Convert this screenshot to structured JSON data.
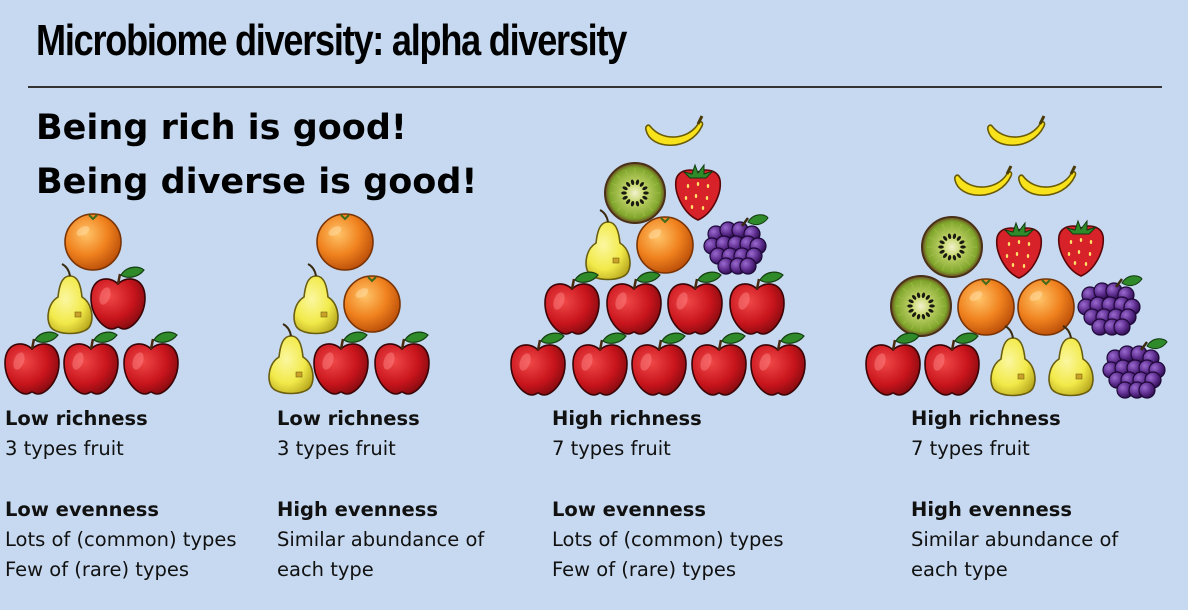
{
  "title": "Microbiome diversity: alpha diversity",
  "headlines": [
    "Being rich is good!",
    "Being diverse is good!"
  ],
  "panels": [
    {
      "richness_label": "Low richness",
      "richness_detail": "3 types fruit",
      "evenness_label": "Low evenness",
      "evenness_detail": [
        "Lots of (common) types",
        "Few of (rare) types"
      ]
    },
    {
      "richness_label": "Low richness",
      "richness_detail": "3 types fruit",
      "evenness_label": "High evenness",
      "evenness_detail": [
        "Similar abundance of",
        "each type"
      ]
    },
    {
      "richness_label": "High richness",
      "richness_detail": "7 types fruit",
      "evenness_label": "Low evenness",
      "evenness_detail": [
        "Lots of (common) types",
        "Few of (rare) types"
      ]
    },
    {
      "richness_label": "High richness",
      "richness_detail": "7 types fruit",
      "evenness_label": "High evenness",
      "evenness_detail": [
        "Similar abundance of",
        "each type"
      ]
    }
  ],
  "fruit_counts": [
    {
      "orange": 1,
      "pear": 1,
      "apple": 4
    },
    {
      "orange": 2,
      "pear": 2,
      "apple": 2
    },
    {
      "banana": 1,
      "kiwi": 1,
      "strawberry": 1,
      "orange": 1,
      "pear": 1,
      "grapes": 1,
      "apple": 9
    },
    {
      "banana": 3,
      "kiwi": 2,
      "strawberry": 2,
      "orange": 2,
      "grapes": 2,
      "apple": 2,
      "pear": 2
    }
  ],
  "colors": {
    "background": "#c6d9f0",
    "apple": "#c8141c",
    "orange": "#f0821e",
    "pear": "#f2ea4a",
    "banana": "#f7e21c",
    "kiwi": "#8fb13a",
    "strawberry": "#d8222a",
    "grapes": "#5a2a8a",
    "leaf": "#2f8a2a"
  }
}
